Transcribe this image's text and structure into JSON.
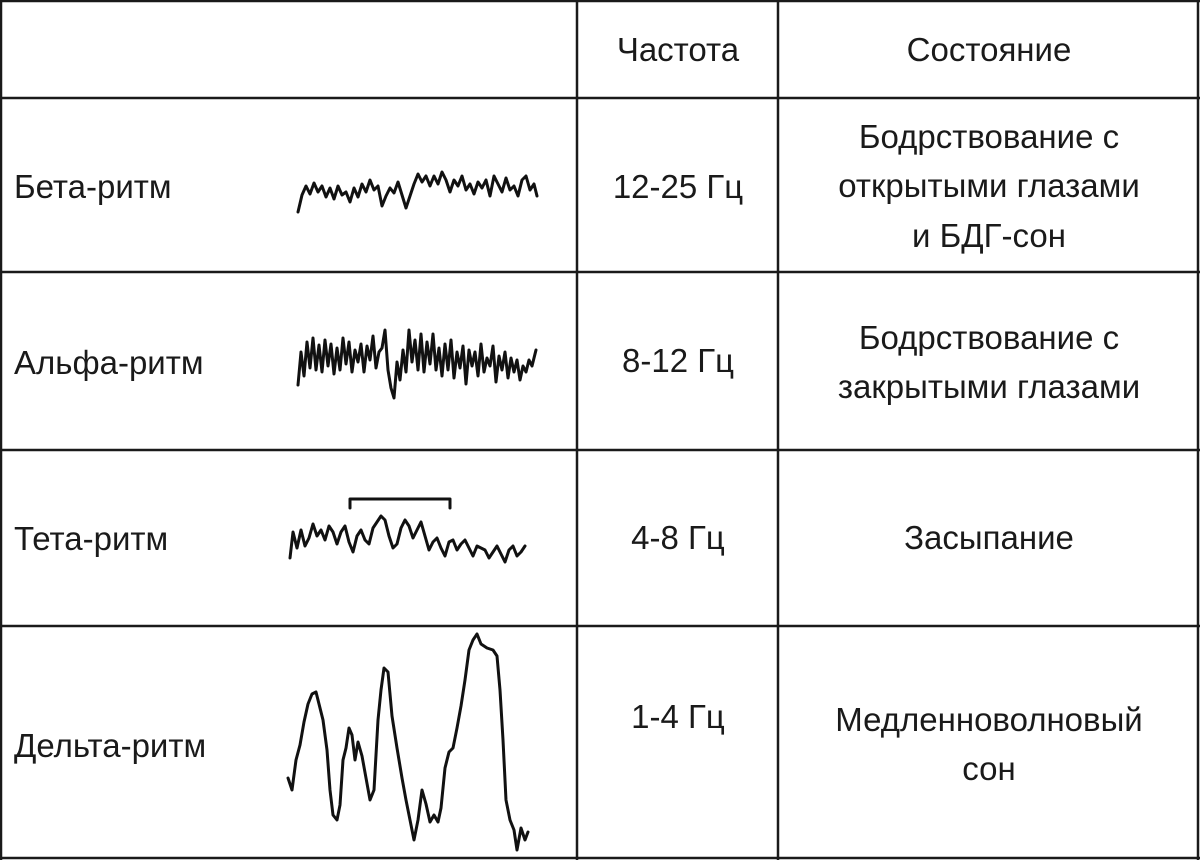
{
  "header": {
    "col_frequency": "Частота",
    "col_state": "Состояние"
  },
  "rows": [
    {
      "rhythm": "Бета-ритм",
      "frequency": "12-25 Гц",
      "state_lines": [
        "Бодрствование с",
        "открытыми глазами",
        "и БДГ-сон"
      ]
    },
    {
      "rhythm": "Альфа-ритм",
      "frequency": "8-12 Гц",
      "state_lines": [
        "Бодрствование с",
        "закрытыми глазами"
      ]
    },
    {
      "rhythm": "Тета-ритм",
      "frequency": "4-8 Гц",
      "state_lines": [
        "Засыпание"
      ]
    },
    {
      "rhythm": "Дельта-ритм",
      "frequency": "1-4 Гц",
      "state_lines": [
        "Медленноволновый",
        "сон"
      ]
    }
  ]
}
